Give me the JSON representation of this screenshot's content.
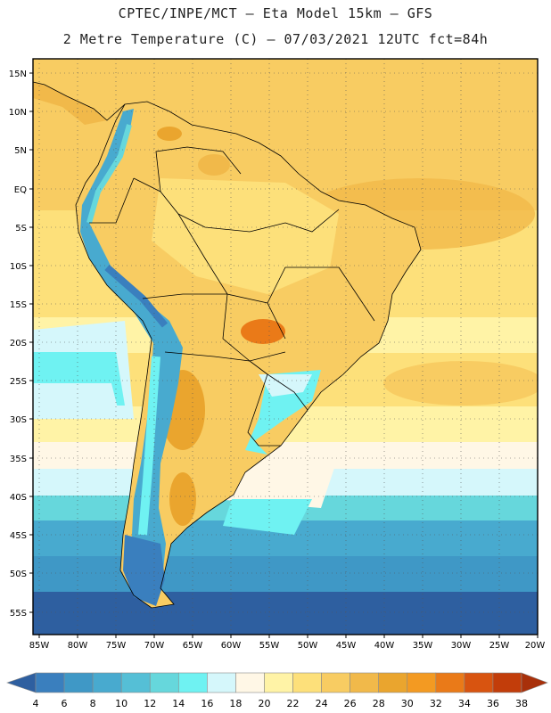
{
  "header": {
    "line1": "CPTEC/INPE/MCT –  Eta Model 15km – GFS",
    "line2": "2 Metre Temperature (C) – 07/03/2021 12UTC fct=84h"
  },
  "map": {
    "lat_labels": [
      "15N",
      "10N",
      "5N",
      "EQ",
      "5S",
      "10S",
      "15S",
      "20S",
      "25S",
      "30S",
      "35S",
      "40S",
      "45S",
      "50S",
      "55S"
    ],
    "lon_labels": [
      "85W",
      "80W",
      "75W",
      "70W",
      "65W",
      "60W",
      "55W",
      "50W",
      "45W",
      "40W",
      "35W",
      "30W",
      "25W",
      "20W"
    ],
    "extent": {
      "lon": [
        -86,
        -20
      ],
      "lat": [
        -58,
        16
      ]
    },
    "gridlines": "dotted"
  },
  "colorbar": {
    "labels": [
      "4",
      "6",
      "8",
      "10",
      "12",
      "14",
      "16",
      "18",
      "20",
      "22",
      "24",
      "26",
      "28",
      "30",
      "32",
      "34",
      "36",
      "38"
    ],
    "colors": [
      "#2e5fa0",
      "#3a7fbe",
      "#3f98c6",
      "#48aacf",
      "#55bfd6",
      "#66d7dc",
      "#6ff2f2",
      "#d5f7fb",
      "#fff7e6",
      "#fff3a6",
      "#fde07a",
      "#f8cc62",
      "#f1b94a",
      "#eaa52e",
      "#f39a22",
      "#ea7a18",
      "#d85410",
      "#c23d0a",
      "#a8300a"
    ]
  }
}
